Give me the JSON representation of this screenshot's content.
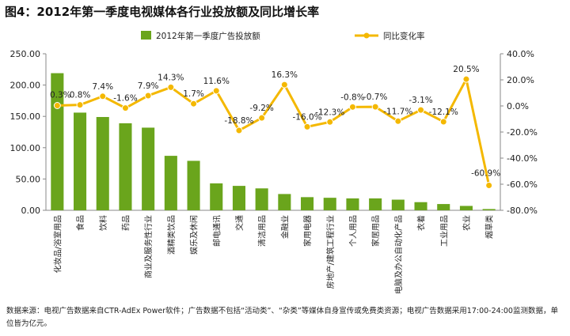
{
  "figure": {
    "title": "图4：2012年第一季度电视媒体各行业投放额及同比增长率",
    "footnote": "数据来源：电视广告数据来自CTR-AdEx Power软件；广告数据不包括“活动类”、“杂类”等媒体自身宣传或免费类资源；电视广告数据采用17:00-24:00监测数据，单位皆为亿元。"
  },
  "chart_data": {
    "type": "bar",
    "title": "",
    "categories": [
      "化妆品/浴室用品",
      "食品",
      "饮料",
      "药品",
      "商业及服务性行业",
      "酒精类饮品",
      "娱乐及休闲",
      "邮电通讯",
      "交通",
      "清洁用品",
      "金融业",
      "家用电器",
      "房地产/建筑工程行业",
      "个人用品",
      "家居用品",
      "电脑及办公自动化产品",
      "衣着",
      "工业用品",
      "农业",
      "烟草类"
    ],
    "series": [
      {
        "name": "2012年第一季度广告投放额",
        "type": "bar",
        "axis": "left",
        "color": "#6aa51c",
        "values": [
          219,
          156,
          149,
          139,
          132,
          87,
          79,
          43,
          39,
          35,
          26,
          21,
          20,
          19,
          19,
          17,
          13,
          10,
          7,
          2
        ]
      },
      {
        "name": "同比变化率",
        "type": "line",
        "axis": "right",
        "color": "#f4b800",
        "unit": "%",
        "values": [
          0.3,
          0.8,
          7.4,
          -1.6,
          7.9,
          14.3,
          1.7,
          11.6,
          -18.8,
          -9.2,
          16.3,
          -16.0,
          -12.3,
          -0.8,
          -0.7,
          -11.7,
          -3.1,
          -12.1,
          20.5,
          -60.9
        ],
        "labels": [
          "0.3%",
          "0.8%",
          "7.4%",
          "-1.6%",
          "7.9%",
          "14.3%",
          "1.7%",
          "11.6%",
          "-18.8%",
          "-9.2%",
          "16.3%",
          "-16.0%",
          "-12.3%",
          "-0.8%",
          "-0.7%",
          "-11.7%",
          "-3.1%",
          "-12.1%",
          "20.5%",
          "-60.9%"
        ]
      }
    ],
    "left_axis": {
      "min": 0,
      "max": 250,
      "ticks": [
        "0.00",
        "50.00",
        "100.00",
        "150.00",
        "200.00",
        "250.00"
      ]
    },
    "right_axis": {
      "min": -80,
      "max": 40,
      "ticks": [
        "-80.0%",
        "-60.0%",
        "-40.0%",
        "-20.0%",
        "0.0%",
        "20.0%",
        "40.0%"
      ]
    },
    "legend": [
      "2012年第一季度广告投放额",
      "同比变化率"
    ],
    "legend_position": "top",
    "grid": false
  }
}
